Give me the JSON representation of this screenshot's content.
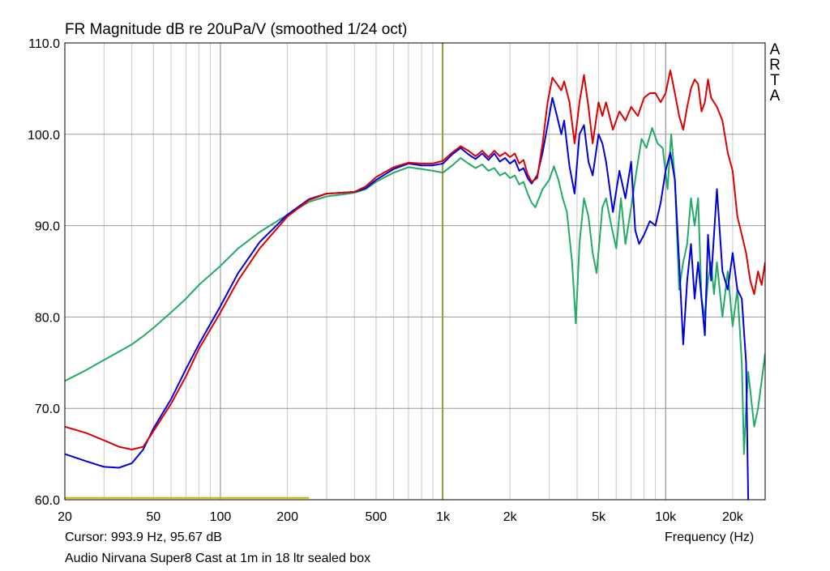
{
  "chart_data": {
    "type": "line",
    "title": "FR Magnitude dB re 20uPa/V (smoothed 1/24 oct)",
    "xlabel": "Frequency (Hz)",
    "ylabel": "",
    "x_scale": "log",
    "xlim": [
      20,
      28000
    ],
    "ylim": [
      60,
      110
    ],
    "grid": true,
    "x_ticks": [
      20,
      50,
      100,
      200,
      500,
      1000,
      2000,
      5000,
      10000,
      20000
    ],
    "x_tick_labels": [
      "20",
      "50",
      "100",
      "200",
      "500",
      "1k",
      "2k",
      "5k",
      "10k",
      "20k"
    ],
    "y_ticks": [
      60,
      70,
      80,
      90,
      100,
      110
    ],
    "y_tick_labels": [
      "60.0",
      "70.0",
      "80.0",
      "90.0",
      "100.0",
      "110.0"
    ],
    "brand": [
      "A",
      "R",
      "T",
      "A"
    ],
    "cursor_text": "Cursor: 993.9 Hz, 95.67 dB",
    "caption": "Audio Nirvana Super8 Cast at 1m in 18 ltr sealed box",
    "cursor": {
      "x": 993.9,
      "y": 95.67
    },
    "reference_line": {
      "x": [
        20,
        250
      ],
      "y": 60.2
    },
    "series": [
      {
        "color": "#dd0000",
        "points": [
          [
            20,
            68
          ],
          [
            25,
            67.3
          ],
          [
            30,
            66.5
          ],
          [
            35,
            65.8
          ],
          [
            40,
            65.5
          ],
          [
            45,
            65.8
          ],
          [
            50,
            67.5
          ],
          [
            60,
            70.5
          ],
          [
            70,
            73.5
          ],
          [
            80,
            76.5
          ],
          [
            100,
            80.5
          ],
          [
            120,
            84
          ],
          [
            150,
            87.5
          ],
          [
            200,
            91
          ],
          [
            250,
            92.8
          ],
          [
            300,
            93.5
          ],
          [
            350,
            93.6
          ],
          [
            400,
            93.7
          ],
          [
            450,
            94.3
          ],
          [
            500,
            95.3
          ],
          [
            600,
            96.4
          ],
          [
            700,
            96.9
          ],
          [
            800,
            96.8
          ],
          [
            900,
            96.8
          ],
          [
            1000,
            97.1
          ],
          [
            1100,
            98
          ],
          [
            1200,
            98.7
          ],
          [
            1300,
            98.2
          ],
          [
            1400,
            97.6
          ],
          [
            1500,
            98.2
          ],
          [
            1600,
            97.5
          ],
          [
            1700,
            98.2
          ],
          [
            1800,
            97.6
          ],
          [
            1900,
            98
          ],
          [
            2000,
            97.5
          ],
          [
            2100,
            97.9
          ],
          [
            2200,
            96.8
          ],
          [
            2300,
            97.2
          ],
          [
            2400,
            95.6
          ],
          [
            2500,
            94.8
          ],
          [
            2650,
            95.2
          ],
          [
            2800,
            99
          ],
          [
            2950,
            103.5
          ],
          [
            3100,
            106.2
          ],
          [
            3250,
            105.5
          ],
          [
            3400,
            104.8
          ],
          [
            3500,
            105.8
          ],
          [
            3700,
            103.5
          ],
          [
            3900,
            99
          ],
          [
            4100,
            103.5
          ],
          [
            4300,
            106.5
          ],
          [
            4500,
            103
          ],
          [
            4700,
            99
          ],
          [
            5000,
            103.5
          ],
          [
            5200,
            102
          ],
          [
            5400,
            103.5
          ],
          [
            5800,
            100.5
          ],
          [
            6200,
            102.5
          ],
          [
            6600,
            101.5
          ],
          [
            7000,
            103
          ],
          [
            7500,
            102
          ],
          [
            8000,
            104
          ],
          [
            8500,
            104.5
          ],
          [
            9000,
            104.5
          ],
          [
            9500,
            103.5
          ],
          [
            10000,
            104.5
          ],
          [
            10500,
            107
          ],
          [
            11000,
            104.5
          ],
          [
            11500,
            102
          ],
          [
            12000,
            100.5
          ],
          [
            12500,
            103
          ],
          [
            13000,
            105
          ],
          [
            13500,
            106
          ],
          [
            14000,
            105.5
          ],
          [
            14500,
            102.5
          ],
          [
            15000,
            103.5
          ],
          [
            15500,
            106
          ],
          [
            16000,
            104
          ],
          [
            17000,
            103
          ],
          [
            18000,
            101.5
          ],
          [
            19000,
            98
          ],
          [
            20000,
            96
          ],
          [
            21000,
            91
          ],
          [
            22000,
            89
          ],
          [
            23000,
            87
          ],
          [
            24000,
            84
          ],
          [
            25000,
            82.5
          ],
          [
            26000,
            85
          ],
          [
            27000,
            83.5
          ],
          [
            28000,
            86
          ]
        ]
      },
      {
        "color": "#0000dd",
        "points": [
          [
            20,
            65
          ],
          [
            25,
            64.2
          ],
          [
            30,
            63.6
          ],
          [
            35,
            63.5
          ],
          [
            40,
            64
          ],
          [
            45,
            65.5
          ],
          [
            50,
            67.8
          ],
          [
            60,
            71
          ],
          [
            70,
            74.3
          ],
          [
            80,
            77
          ],
          [
            100,
            81.2
          ],
          [
            120,
            84.8
          ],
          [
            150,
            88.2
          ],
          [
            200,
            91.2
          ],
          [
            250,
            92.9
          ],
          [
            300,
            93.5
          ],
          [
            350,
            93.6
          ],
          [
            400,
            93.7
          ],
          [
            450,
            94.1
          ],
          [
            500,
            95
          ],
          [
            600,
            96.2
          ],
          [
            700,
            96.8
          ],
          [
            800,
            96.6
          ],
          [
            900,
            96.6
          ],
          [
            1000,
            96.8
          ],
          [
            1100,
            97.8
          ],
          [
            1200,
            98.5
          ],
          [
            1300,
            97.8
          ],
          [
            1400,
            97.3
          ],
          [
            1500,
            97.9
          ],
          [
            1600,
            97.2
          ],
          [
            1700,
            97.9
          ],
          [
            1800,
            97
          ],
          [
            1900,
            97.4
          ],
          [
            2000,
            96.8
          ],
          [
            2100,
            97.2
          ],
          [
            2200,
            96
          ],
          [
            2300,
            96.3
          ],
          [
            2400,
            95.2
          ],
          [
            2500,
            94.6
          ],
          [
            2650,
            95.5
          ],
          [
            2800,
            98
          ],
          [
            2950,
            101
          ],
          [
            3100,
            104
          ],
          [
            3250,
            102
          ],
          [
            3400,
            100
          ],
          [
            3500,
            101.5
          ],
          [
            3700,
            96.5
          ],
          [
            3900,
            93.5
          ],
          [
            4100,
            100
          ],
          [
            4300,
            101
          ],
          [
            4500,
            97
          ],
          [
            4700,
            95.5
          ],
          [
            5000,
            100
          ],
          [
            5200,
            99
          ],
          [
            5400,
            97
          ],
          [
            5800,
            91.5
          ],
          [
            6200,
            96
          ],
          [
            6600,
            93
          ],
          [
            7000,
            97
          ],
          [
            7300,
            89.5
          ],
          [
            7600,
            88
          ],
          [
            8000,
            89
          ],
          [
            8500,
            90.5
          ],
          [
            9000,
            90
          ],
          [
            9500,
            92.5
          ],
          [
            10000,
            96
          ],
          [
            10500,
            98
          ],
          [
            11000,
            95
          ],
          [
            11500,
            86
          ],
          [
            12000,
            77
          ],
          [
            12500,
            84
          ],
          [
            13000,
            88
          ],
          [
            13500,
            82
          ],
          [
            14000,
            86
          ],
          [
            14500,
            82
          ],
          [
            15000,
            78
          ],
          [
            15500,
            89
          ],
          [
            16000,
            84
          ],
          [
            17000,
            94
          ],
          [
            18000,
            85
          ],
          [
            19000,
            83
          ],
          [
            20000,
            87
          ],
          [
            21000,
            83
          ],
          [
            22000,
            82
          ],
          [
            23000,
            75
          ],
          [
            23500,
            60
          ]
        ]
      },
      {
        "color": "#22aa66",
        "points": [
          [
            20,
            73
          ],
          [
            25,
            74.2
          ],
          [
            30,
            75.3
          ],
          [
            35,
            76.2
          ],
          [
            40,
            77
          ],
          [
            45,
            77.9
          ],
          [
            50,
            78.8
          ],
          [
            60,
            80.5
          ],
          [
            70,
            82
          ],
          [
            80,
            83.5
          ],
          [
            100,
            85.6
          ],
          [
            120,
            87.5
          ],
          [
            150,
            89.3
          ],
          [
            200,
            91.2
          ],
          [
            250,
            92.6
          ],
          [
            300,
            93.2
          ],
          [
            350,
            93.4
          ],
          [
            400,
            93.6
          ],
          [
            450,
            94
          ],
          [
            500,
            94.8
          ],
          [
            600,
            95.8
          ],
          [
            700,
            96.4
          ],
          [
            800,
            96.2
          ],
          [
            900,
            96
          ],
          [
            1000,
            95.8
          ],
          [
            1100,
            96.6
          ],
          [
            1200,
            97.4
          ],
          [
            1300,
            96.8
          ],
          [
            1400,
            96.3
          ],
          [
            1500,
            96.7
          ],
          [
            1600,
            96
          ],
          [
            1700,
            96.3
          ],
          [
            1800,
            95.5
          ],
          [
            1900,
            95.8
          ],
          [
            2000,
            95.2
          ],
          [
            2100,
            95.5
          ],
          [
            2200,
            94.5
          ],
          [
            2300,
            94.8
          ],
          [
            2400,
            93.5
          ],
          [
            2500,
            92.5
          ],
          [
            2600,
            92
          ],
          [
            2800,
            94
          ],
          [
            3000,
            95
          ],
          [
            3150,
            96.5
          ],
          [
            3300,
            95
          ],
          [
            3450,
            93
          ],
          [
            3600,
            91.5
          ],
          [
            3800,
            86
          ],
          [
            3950,
            79.3
          ],
          [
            4100,
            88
          ],
          [
            4300,
            93
          ],
          [
            4500,
            91
          ],
          [
            4700,
            87
          ],
          [
            4900,
            84.8
          ],
          [
            5200,
            92
          ],
          [
            5400,
            93
          ],
          [
            5700,
            90
          ],
          [
            6000,
            87.5
          ],
          [
            6300,
            93
          ],
          [
            6600,
            88
          ],
          [
            7000,
            92
          ],
          [
            7400,
            96
          ],
          [
            7800,
            99.5
          ],
          [
            8200,
            98.5
          ],
          [
            8700,
            100.7
          ],
          [
            9200,
            99
          ],
          [
            9700,
            98.5
          ],
          [
            10200,
            94
          ],
          [
            10600,
            100
          ],
          [
            11000,
            95
          ],
          [
            11500,
            83
          ],
          [
            12000,
            86
          ],
          [
            12500,
            88
          ],
          [
            13000,
            93
          ],
          [
            13500,
            90
          ],
          [
            14000,
            93
          ],
          [
            14500,
            82
          ],
          [
            15000,
            80
          ],
          [
            15500,
            84
          ],
          [
            16000,
            86
          ],
          [
            16500,
            82.5
          ],
          [
            17000,
            86
          ],
          [
            18000,
            80
          ],
          [
            19000,
            85
          ],
          [
            20000,
            79
          ],
          [
            21000,
            83
          ],
          [
            22000,
            75
          ],
          [
            22500,
            65
          ],
          [
            23000,
            70
          ],
          [
            23500,
            74
          ],
          [
            24000,
            72
          ],
          [
            25000,
            68
          ],
          [
            26000,
            70
          ],
          [
            27000,
            73
          ],
          [
            28000,
            76
          ]
        ]
      }
    ]
  }
}
